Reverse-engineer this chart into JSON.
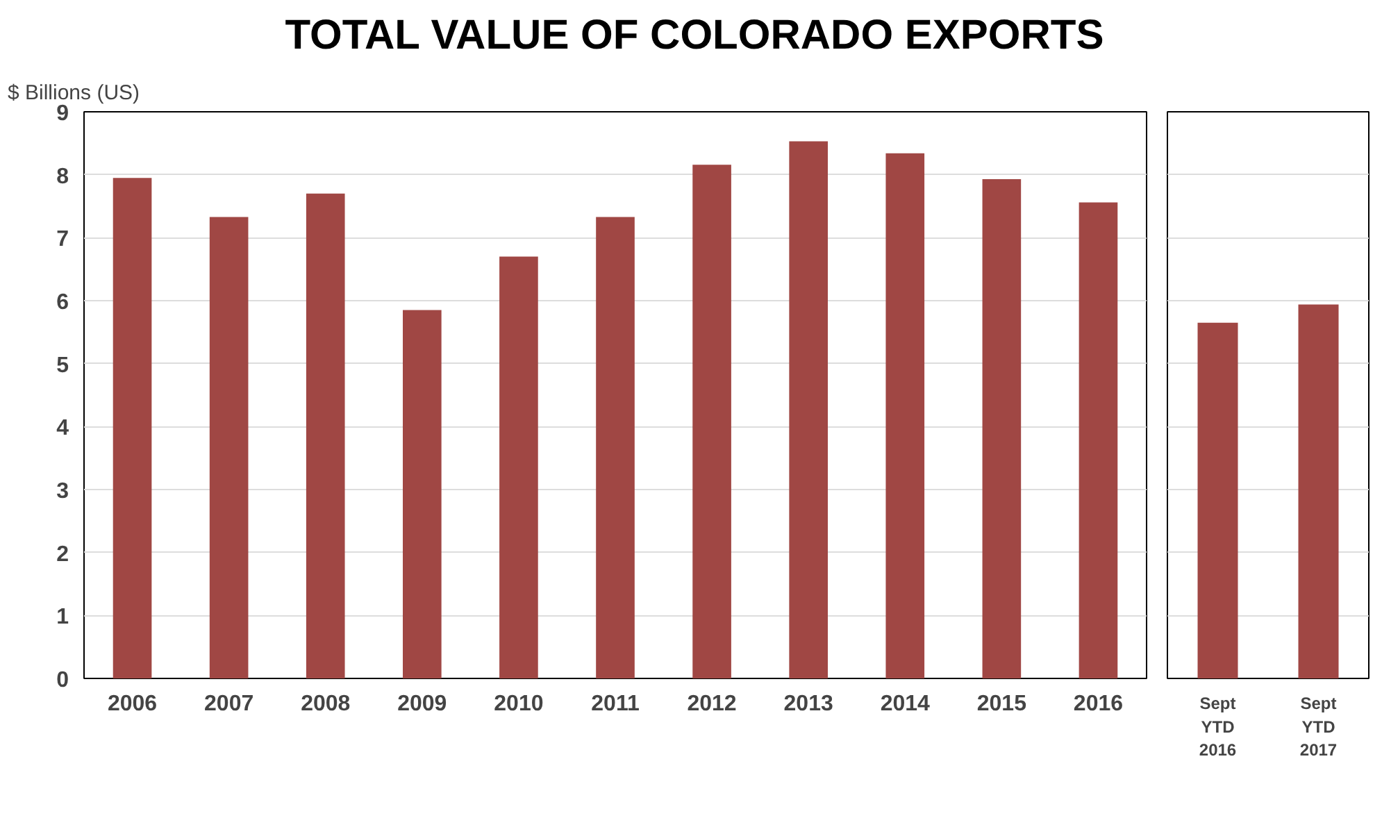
{
  "chart_data": [
    {
      "type": "bar",
      "title": "TOTAL VALUE OF COLORADO EXPORTS",
      "ylabel": "$ Billions (US)",
      "categories": [
        "2006",
        "2007",
        "2008",
        "2009",
        "2010",
        "2011",
        "2012",
        "2013",
        "2014",
        "2015",
        "2016"
      ],
      "values": [
        7.95,
        7.33,
        7.7,
        5.85,
        6.7,
        7.33,
        8.16,
        8.53,
        8.34,
        7.93,
        7.56
      ],
      "color": "#a04744",
      "ylim": [
        0,
        9
      ],
      "yticks": [
        0,
        1,
        2,
        3,
        4,
        5,
        6,
        7,
        8,
        9
      ],
      "grid": "y"
    },
    {
      "type": "bar",
      "categories": [
        "Sept\nYTD\n2016",
        "Sept\nYTD\n2017"
      ],
      "values": [
        5.65,
        5.94
      ],
      "color": "#a04744",
      "ylim": [
        0,
        9
      ],
      "tick_labels": "x",
      "grid": "y"
    }
  ]
}
